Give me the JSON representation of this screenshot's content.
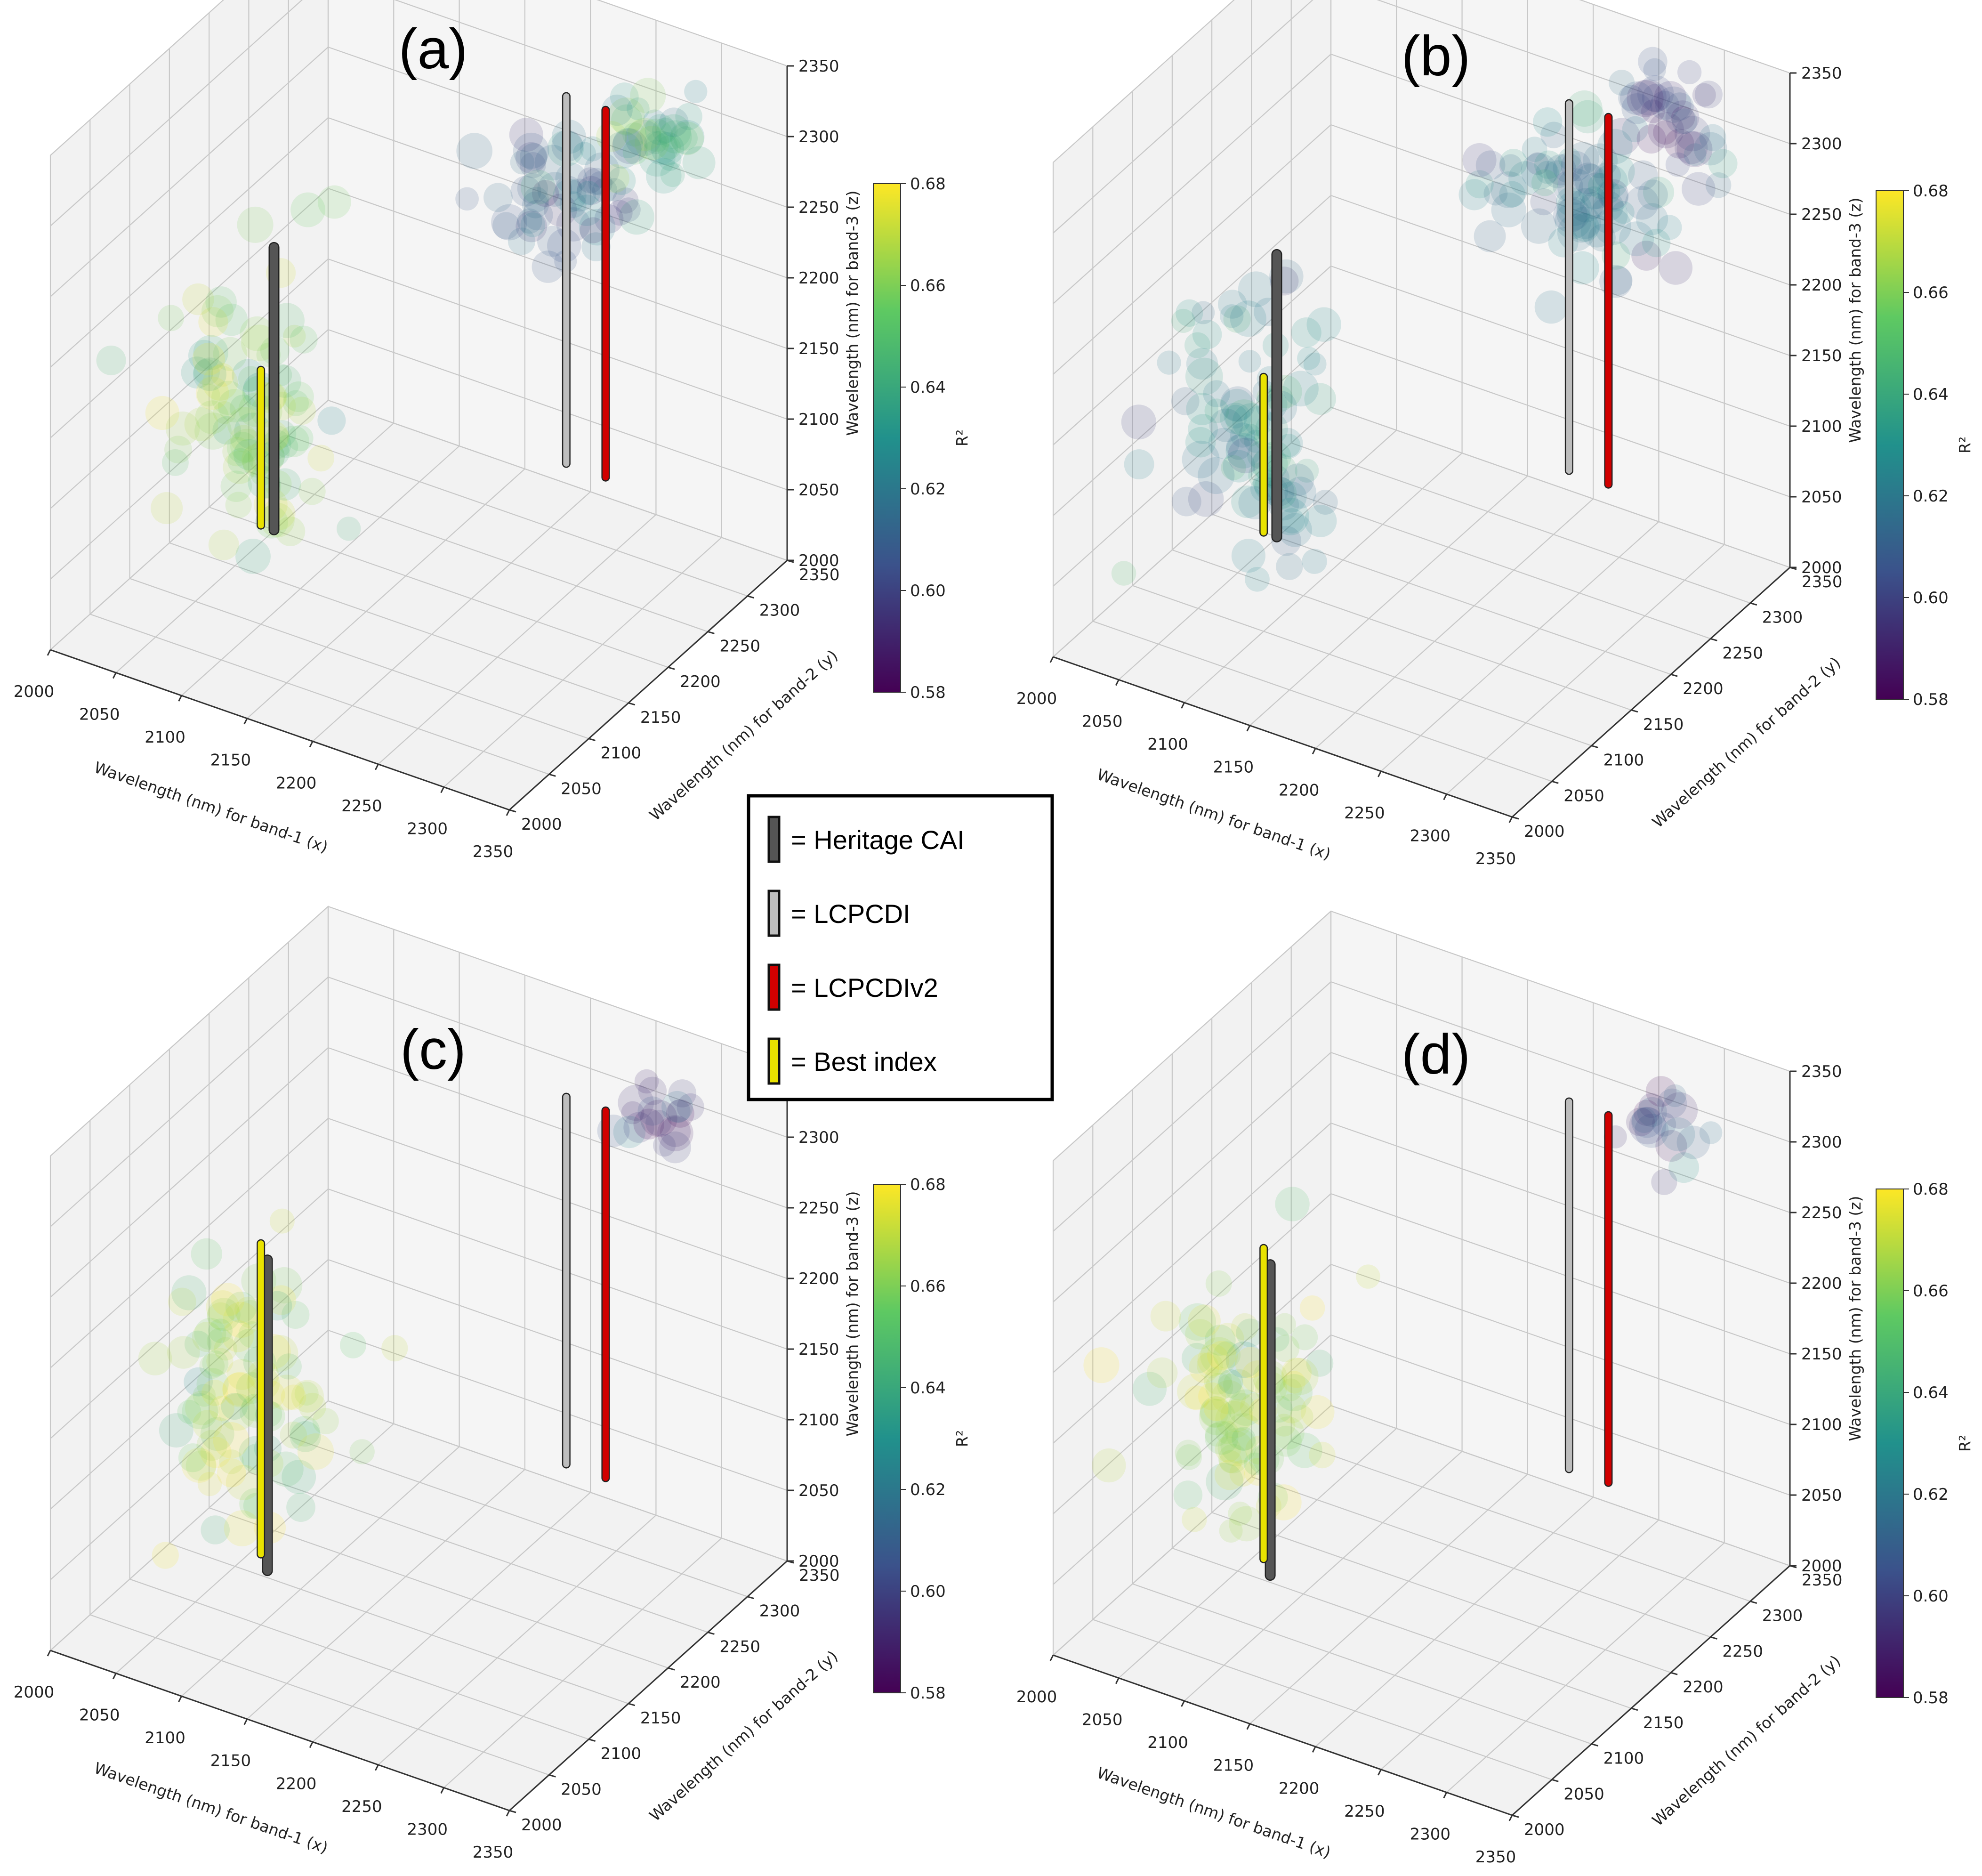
{
  "figure": {
    "colors": {
      "heritage_cai": "#555555",
      "lcpcdi": "#bdbdbd",
      "lcpcdiv2": "#d10000",
      "best_index": "#e9e200",
      "pane": "#f2f2f2",
      "grid": "#c8c8c8",
      "colormap": [
        "#440154",
        "#3b528b",
        "#21918c",
        "#5ec962",
        "#fde725"
      ]
    },
    "legend": {
      "items": [
        {
          "label": "= Heritage CAI",
          "color_key": "heritage_cai"
        },
        {
          "label": "= LCPCDI",
          "color_key": "lcpcdi"
        },
        {
          "label": "= LCPCDIv2",
          "color_key": "lcpcdiv2"
        },
        {
          "label": "= Best index",
          "color_key": "best_index"
        }
      ]
    }
  },
  "chart_data": [
    {
      "panel": "(a)",
      "type": "scatter",
      "title": "(a)",
      "xlabel": "Wavelength (nm) for band-1 (x)",
      "ylabel": "Wavelength (nm) for band-2 (y)",
      "zlabel": "Wavelength (nm) for band-3 (z)",
      "xlim": [
        2000,
        2350
      ],
      "ylim": [
        2000,
        2350
      ],
      "zlim": [
        2000,
        2350
      ],
      "ticks": [
        "2000",
        "2050",
        "2100",
        "2150",
        "2200",
        "2250",
        "2300",
        "2350"
      ],
      "colorbar": {
        "label": "R²",
        "min": 0.58,
        "max": 0.68,
        "ticks": [
          "0.58",
          "0.60",
          "0.62",
          "0.64",
          "0.66",
          "0.68"
        ]
      },
      "clusters": [
        {
          "x": 2090,
          "y": 2100,
          "z": 2150,
          "spread": [
            55,
            40,
            90
          ],
          "r2": 0.66,
          "n": 95
        },
        {
          "x": 2230,
          "y": 2270,
          "z": 2260,
          "spread": [
            45,
            35,
            40
          ],
          "r2": 0.61,
          "n": 60
        },
        {
          "x": 2280,
          "y": 2300,
          "z": 2300,
          "spread": [
            30,
            25,
            30
          ],
          "r2": 0.64,
          "n": 35
        }
      ],
      "index_lines": [
        {
          "name": "Heritage CAI",
          "x": 2110,
          "y": 2100,
          "z": [
            2070,
            2270
          ]
        },
        {
          "name": "Best index",
          "x": 2100,
          "y": 2100,
          "z": [
            2070,
            2180
          ]
        },
        {
          "name": "LCPCDI",
          "x": 2230,
          "y": 2270,
          "z": [
            2070,
            2330
          ]
        },
        {
          "name": "LCPCDIv2",
          "x": 2260,
          "y": 2270,
          "z": [
            2070,
            2330
          ]
        }
      ]
    },
    {
      "panel": "(b)",
      "type": "scatter",
      "title": "(b)",
      "xlabel": "Wavelength (nm) for band-1 (x)",
      "ylabel": "Wavelength (nm) for band-2 (y)",
      "zlabel": "Wavelength (nm) for band-3 (z)",
      "xlim": [
        2000,
        2350
      ],
      "ylim": [
        2000,
        2350
      ],
      "zlim": [
        2000,
        2350
      ],
      "ticks": [
        "2000",
        "2050",
        "2100",
        "2150",
        "2200",
        "2250",
        "2300",
        "2350"
      ],
      "colorbar": {
        "label": "R²",
        "min": 0.58,
        "max": 0.68,
        "ticks": [
          "0.58",
          "0.60",
          "0.62",
          "0.64",
          "0.66",
          "0.68"
        ]
      },
      "clusters": [
        {
          "x": 2090,
          "y": 2100,
          "z": 2150,
          "spread": [
            55,
            40,
            90
          ],
          "r2": 0.63,
          "n": 95
        },
        {
          "x": 2240,
          "y": 2280,
          "z": 2260,
          "spread": [
            55,
            40,
            40
          ],
          "r2": 0.62,
          "n": 80
        },
        {
          "x": 2290,
          "y": 2310,
          "z": 2320,
          "spread": [
            30,
            25,
            30
          ],
          "r2": 0.6,
          "n": 35
        }
      ],
      "index_lines": [
        {
          "name": "Heritage CAI",
          "x": 2110,
          "y": 2100,
          "z": [
            2070,
            2270
          ]
        },
        {
          "name": "Best index",
          "x": 2100,
          "y": 2100,
          "z": [
            2070,
            2180
          ]
        },
        {
          "name": "LCPCDI",
          "x": 2230,
          "y": 2270,
          "z": [
            2070,
            2330
          ]
        },
        {
          "name": "LCPCDIv2",
          "x": 2260,
          "y": 2270,
          "z": [
            2070,
            2330
          ]
        }
      ]
    },
    {
      "panel": "(c)",
      "type": "scatter",
      "title": "(c)",
      "xlabel": "Wavelength (nm) for band-1 (x)",
      "ylabel": "Wavelength (nm) for band-2 (y)",
      "zlabel": "Wavelength (nm) for band-3 (z)",
      "xlim": [
        2000,
        2350
      ],
      "ylim": [
        2000,
        2350
      ],
      "zlim": [
        2000,
        2350
      ],
      "ticks": [
        "2000",
        "2050",
        "2100",
        "2150",
        "2200",
        "2250",
        "2300",
        "2350"
      ],
      "colorbar": {
        "label": "R²",
        "min": 0.58,
        "max": 0.68,
        "ticks": [
          "0.58",
          "0.60",
          "0.62",
          "0.64",
          "0.66",
          "0.68"
        ]
      },
      "clusters": [
        {
          "x": 2090,
          "y": 2100,
          "z": 2160,
          "spread": [
            55,
            40,
            85
          ],
          "r2": 0.665,
          "n": 95
        },
        {
          "x": 2280,
          "y": 2310,
          "z": 2310,
          "spread": [
            25,
            20,
            25
          ],
          "r2": 0.6,
          "n": 20
        }
      ],
      "index_lines": [
        {
          "name": "Heritage CAI",
          "x": 2105,
          "y": 2100,
          "z": [
            2040,
            2260
          ]
        },
        {
          "name": "Best index",
          "x": 2100,
          "y": 2100,
          "z": [
            2050,
            2270
          ]
        },
        {
          "name": "LCPCDI",
          "x": 2230,
          "y": 2270,
          "z": [
            2070,
            2330
          ]
        },
        {
          "name": "LCPCDIv2",
          "x": 2260,
          "y": 2270,
          "z": [
            2070,
            2330
          ]
        }
      ]
    },
    {
      "panel": "(d)",
      "type": "scatter",
      "title": "(d)",
      "xlabel": "Wavelength (nm) for band-1 (x)",
      "ylabel": "Wavelength (nm) for band-2 (y)",
      "zlabel": "Wavelength (nm) for band-3 (z)",
      "xlim": [
        2000,
        2350
      ],
      "ylim": [
        2000,
        2350
      ],
      "zlim": [
        2000,
        2350
      ],
      "ticks": [
        "2000",
        "2050",
        "2100",
        "2150",
        "2200",
        "2250",
        "2300",
        "2350"
      ],
      "colorbar": {
        "label": "R²",
        "min": 0.58,
        "max": 0.68,
        "ticks": [
          "0.58",
          "0.60",
          "0.62",
          "0.64",
          "0.66",
          "0.68"
        ]
      },
      "clusters": [
        {
          "x": 2090,
          "y": 2100,
          "z": 2160,
          "spread": [
            55,
            40,
            85
          ],
          "r2": 0.665,
          "n": 95
        },
        {
          "x": 2280,
          "y": 2310,
          "z": 2310,
          "spread": [
            25,
            20,
            25
          ],
          "r2": 0.6,
          "n": 20
        }
      ],
      "index_lines": [
        {
          "name": "Heritage CAI",
          "x": 2105,
          "y": 2100,
          "z": [
            2040,
            2260
          ]
        },
        {
          "name": "Best index",
          "x": 2100,
          "y": 2100,
          "z": [
            2050,
            2270
          ]
        },
        {
          "name": "LCPCDI",
          "x": 2230,
          "y": 2270,
          "z": [
            2070,
            2330
          ]
        },
        {
          "name": "LCPCDIv2",
          "x": 2260,
          "y": 2270,
          "z": [
            2070,
            2330
          ]
        }
      ]
    }
  ]
}
